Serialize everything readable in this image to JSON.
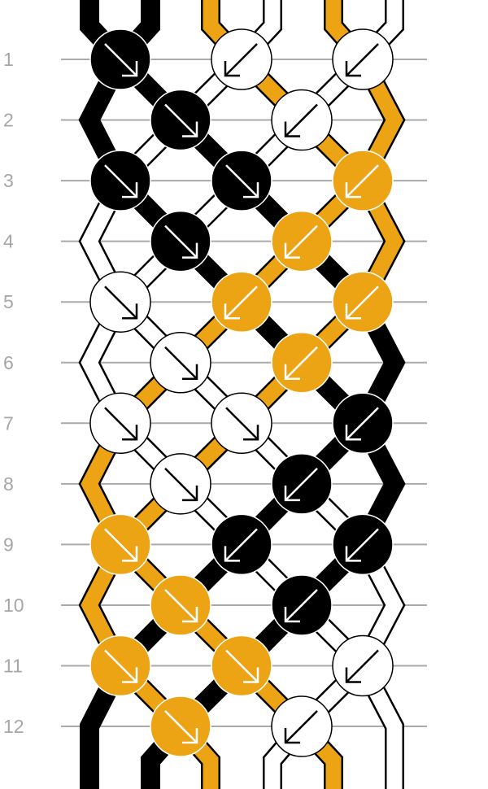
{
  "colors": {
    "K": "#000000",
    "W": "#ffffff",
    "O": "#eca314",
    "grid": "#aaaaaa",
    "label": "#a6a6a6"
  },
  "strands_start": [
    "K",
    "K",
    "O",
    "W",
    "O",
    "W"
  ],
  "rows": [
    {
      "label": "1",
      "knots": [
        {
          "color": "K",
          "dir": "fwd"
        },
        {
          "color": "W",
          "dir": "bwd"
        },
        {
          "color": "W",
          "dir": "bwd"
        }
      ]
    },
    {
      "label": "2",
      "knots": [
        {
          "color": "K",
          "dir": "fwd"
        },
        {
          "color": "W",
          "dir": "bwd"
        }
      ]
    },
    {
      "label": "3",
      "knots": [
        {
          "color": "K",
          "dir": "fwd"
        },
        {
          "color": "K",
          "dir": "fwd"
        },
        {
          "color": "O",
          "dir": "bwd"
        }
      ]
    },
    {
      "label": "4",
      "knots": [
        {
          "color": "K",
          "dir": "fwd"
        },
        {
          "color": "O",
          "dir": "bwd"
        }
      ]
    },
    {
      "label": "5",
      "knots": [
        {
          "color": "W",
          "dir": "fwd"
        },
        {
          "color": "O",
          "dir": "bwd"
        },
        {
          "color": "O",
          "dir": "bwd"
        }
      ]
    },
    {
      "label": "6",
      "knots": [
        {
          "color": "W",
          "dir": "fwd"
        },
        {
          "color": "O",
          "dir": "bwd"
        }
      ]
    },
    {
      "label": "7",
      "knots": [
        {
          "color": "W",
          "dir": "fwd"
        },
        {
          "color": "W",
          "dir": "fwd"
        },
        {
          "color": "K",
          "dir": "bwd"
        }
      ]
    },
    {
      "label": "8",
      "knots": [
        {
          "color": "W",
          "dir": "fwd"
        },
        {
          "color": "K",
          "dir": "bwd"
        }
      ]
    },
    {
      "label": "9",
      "knots": [
        {
          "color": "O",
          "dir": "fwd"
        },
        {
          "color": "K",
          "dir": "bwd"
        },
        {
          "color": "K",
          "dir": "bwd"
        }
      ]
    },
    {
      "label": "10",
      "knots": [
        {
          "color": "O",
          "dir": "fwd"
        },
        {
          "color": "K",
          "dir": "bwd"
        }
      ]
    },
    {
      "label": "11",
      "knots": [
        {
          "color": "O",
          "dir": "fwd"
        },
        {
          "color": "O",
          "dir": "fwd"
        },
        {
          "color": "W",
          "dir": "bwd"
        }
      ]
    },
    {
      "label": "12",
      "knots": [
        {
          "color": "O",
          "dir": "fwd"
        },
        {
          "color": "W",
          "dir": "bwd"
        }
      ]
    }
  ]
}
